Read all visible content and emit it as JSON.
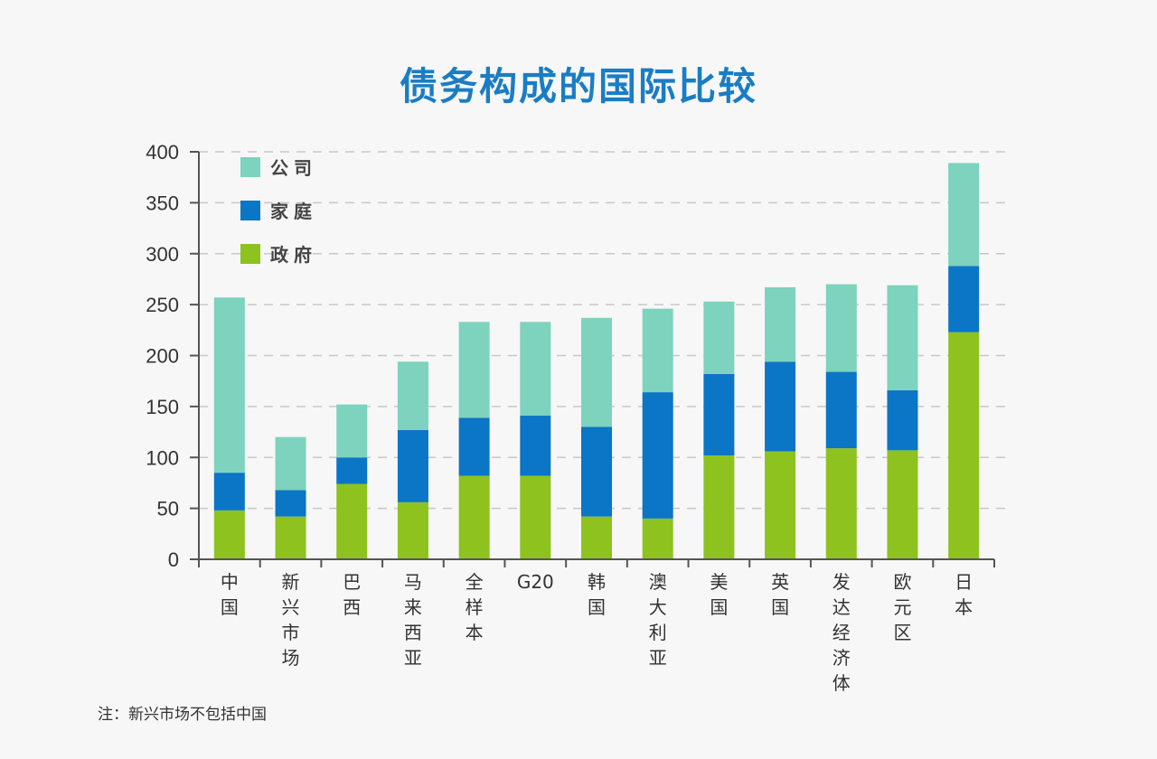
{
  "chart_data": {
    "type": "bar",
    "stacked": true,
    "title": "债务构成的国际比较",
    "note": "注：新兴市场不包括中国",
    "categories": [
      "中国",
      "新兴市场",
      "巴西",
      "马来西亚",
      "全样本",
      "G20",
      "韩国",
      "澳大利亚",
      "美国",
      "英国",
      "发达经济体",
      "欧元区",
      "日本"
    ],
    "series": [
      {
        "name": "政府",
        "color": "#8dc21f",
        "values": [
          48,
          42,
          74,
          56,
          82,
          82,
          42,
          40,
          102,
          106,
          109,
          107,
          223
        ]
      },
      {
        "name": "家庭",
        "color": "#0b75c6",
        "values": [
          37,
          26,
          26,
          71,
          57,
          59,
          88,
          124,
          80,
          88,
          75,
          59,
          65
        ]
      },
      {
        "name": "公司",
        "color": "#7dd3bd",
        "values": [
          172,
          52,
          52,
          67,
          94,
          92,
          107,
          82,
          71,
          73,
          86,
          103,
          101
        ]
      }
    ],
    "legend_order": [
      "公司",
      "家庭",
      "政府"
    ],
    "legend_placement": "top-left",
    "ylim": [
      0,
      400
    ],
    "yticks": [
      0,
      50,
      100,
      150,
      200,
      250,
      300,
      350,
      400
    ],
    "grid": "horizontal dashed",
    "xlabel": "",
    "ylabel": ""
  }
}
